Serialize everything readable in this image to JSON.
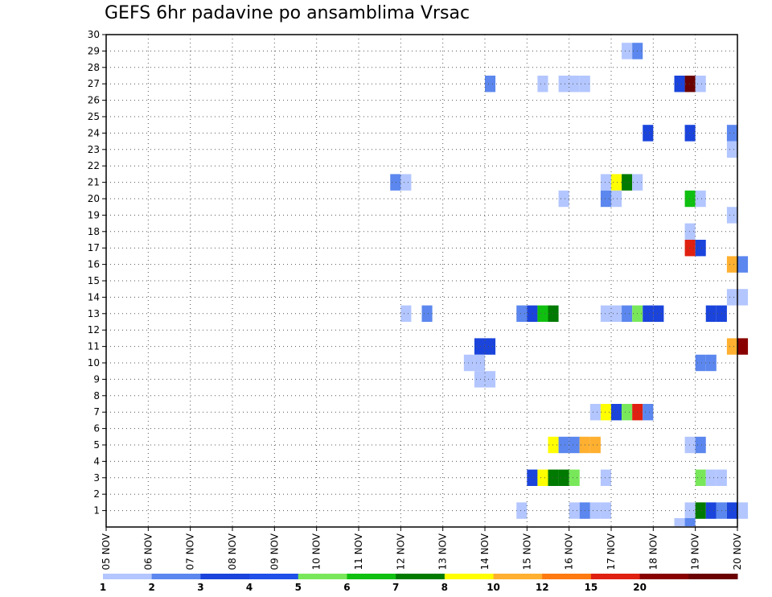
{
  "chart_data": {
    "type": "heatmap",
    "title": "GEFS 6hr padavine po ansamblima Vrsac",
    "x_tick_labels": [
      "05 NOV",
      "06 NOV",
      "07 NOV",
      "08 NOV",
      "09 NOV",
      "10 NOV",
      "11 NOV",
      "12 NOV",
      "13 NOV",
      "14 NOV",
      "15 NOV",
      "16 NOV",
      "17 NOV",
      "18 NOV",
      "19 NOV",
      "20 NOV"
    ],
    "y_tick_labels": [
      "1",
      "2",
      "3",
      "4",
      "5",
      "6",
      "7",
      "8",
      "9",
      "10",
      "11",
      "12",
      "13",
      "14",
      "15",
      "16",
      "17",
      "18",
      "19",
      "20",
      "21",
      "22",
      "23",
      "24",
      "25",
      "26",
      "27",
      "28",
      "29",
      "30"
    ],
    "xlim": [
      "05 NOV 00Z",
      "20 NOV 00Z"
    ],
    "ylim": [
      0,
      30
    ],
    "time_step_hours": 6,
    "grid": true,
    "legend": {
      "placement": "bottom",
      "levels": [
        "1",
        "2",
        "3",
        "4",
        "5",
        "6",
        "7",
        "8",
        "10",
        "12",
        "15",
        "20"
      ],
      "colors": [
        "#b3c6ff",
        "#5b87ee",
        "#1a44db",
        "#2050e8",
        "#78e85a",
        "#10c010",
        "#007a00",
        "#ffff00",
        "#ffb030",
        "#ff7a10",
        "#e02010",
        "#880000",
        "#6a0000"
      ]
    },
    "cells_note": "each cell: member, day (NOV), 6h step index 0-3 starting 00Z, color index into legend.colors",
    "cells": [
      [
        29,
        17,
        1,
        0
      ],
      [
        29,
        17,
        2,
        1
      ],
      [
        27,
        14,
        0,
        1
      ],
      [
        27,
        15,
        1,
        0
      ],
      [
        27,
        15,
        3,
        0
      ],
      [
        27,
        16,
        0,
        0
      ],
      [
        27,
        16,
        1,
        0
      ],
      [
        27,
        18,
        2,
        2
      ],
      [
        27,
        18,
        3,
        12
      ],
      [
        27,
        19,
        0,
        0
      ],
      [
        24,
        17,
        3,
        2
      ],
      [
        24,
        18,
        3,
        2
      ],
      [
        24,
        19,
        3,
        1
      ],
      [
        23,
        19,
        3,
        0
      ],
      [
        21,
        11,
        3,
        1
      ],
      [
        21,
        12,
        0,
        0
      ],
      [
        21,
        16,
        3,
        0
      ],
      [
        21,
        17,
        0,
        7
      ],
      [
        21,
        17,
        1,
        6
      ],
      [
        21,
        17,
        2,
        0
      ],
      [
        20,
        15,
        3,
        0
      ],
      [
        20,
        16,
        3,
        1
      ],
      [
        20,
        17,
        0,
        0
      ],
      [
        20,
        18,
        3,
        5
      ],
      [
        20,
        19,
        0,
        0
      ],
      [
        19,
        19,
        3,
        0
      ],
      [
        18,
        18,
        3,
        0
      ],
      [
        17,
        18,
        3,
        10
      ],
      [
        17,
        19,
        0,
        2
      ],
      [
        16,
        19,
        3,
        8
      ],
      [
        16,
        20,
        0,
        1
      ],
      [
        14,
        19,
        3,
        0
      ],
      [
        14,
        20,
        0,
        0
      ],
      [
        13,
        12,
        0,
        0
      ],
      [
        13,
        12,
        2,
        1
      ],
      [
        13,
        14,
        3,
        1
      ],
      [
        13,
        15,
        0,
        2
      ],
      [
        13,
        15,
        1,
        5
      ],
      [
        13,
        15,
        2,
        6
      ],
      [
        13,
        16,
        3,
        0
      ],
      [
        13,
        17,
        0,
        0
      ],
      [
        13,
        17,
        1,
        1
      ],
      [
        13,
        17,
        2,
        4
      ],
      [
        13,
        17,
        3,
        2
      ],
      [
        13,
        18,
        0,
        2
      ],
      [
        13,
        19,
        1,
        2
      ],
      [
        13,
        19,
        2,
        2
      ],
      [
        11,
        13,
        3,
        2
      ],
      [
        11,
        14,
        0,
        2
      ],
      [
        11,
        19,
        3,
        8
      ],
      [
        11,
        20,
        0,
        11
      ],
      [
        10,
        13,
        2,
        0
      ],
      [
        10,
        13,
        3,
        0
      ],
      [
        10,
        19,
        0,
        1
      ],
      [
        10,
        19,
        1,
        1
      ],
      [
        9,
        13,
        3,
        0
      ],
      [
        9,
        14,
        0,
        0
      ],
      [
        7,
        16,
        2,
        0
      ],
      [
        7,
        16,
        3,
        7
      ],
      [
        7,
        17,
        0,
        2
      ],
      [
        7,
        17,
        1,
        4
      ],
      [
        7,
        17,
        2,
        10
      ],
      [
        7,
        17,
        3,
        1
      ],
      [
        5,
        15,
        2,
        7
      ],
      [
        5,
        15,
        3,
        1
      ],
      [
        5,
        16,
        0,
        1
      ],
      [
        5,
        16,
        1,
        8
      ],
      [
        5,
        16,
        2,
        8
      ],
      [
        5,
        18,
        3,
        0
      ],
      [
        5,
        19,
        0,
        1
      ],
      [
        3,
        15,
        0,
        2
      ],
      [
        3,
        15,
        1,
        7
      ],
      [
        3,
        15,
        2,
        6
      ],
      [
        3,
        15,
        3,
        6
      ],
      [
        3,
        16,
        0,
        4
      ],
      [
        3,
        16,
        3,
        0
      ],
      [
        3,
        19,
        0,
        4
      ],
      [
        3,
        19,
        1,
        0
      ],
      [
        3,
        19,
        2,
        0
      ],
      [
        1,
        14,
        3,
        0
      ],
      [
        1,
        16,
        0,
        0
      ],
      [
        1,
        16,
        1,
        1
      ],
      [
        1,
        16,
        2,
        0
      ],
      [
        1,
        16,
        3,
        0
      ],
      [
        1,
        18,
        3,
        0
      ],
      [
        1,
        19,
        0,
        6
      ],
      [
        1,
        19,
        1,
        2
      ],
      [
        1,
        19,
        2,
        1
      ],
      [
        1,
        19,
        3,
        2
      ],
      [
        1,
        20,
        0,
        0
      ],
      [
        0,
        18,
        2,
        0
      ],
      [
        0,
        18,
        3,
        1
      ]
    ]
  }
}
